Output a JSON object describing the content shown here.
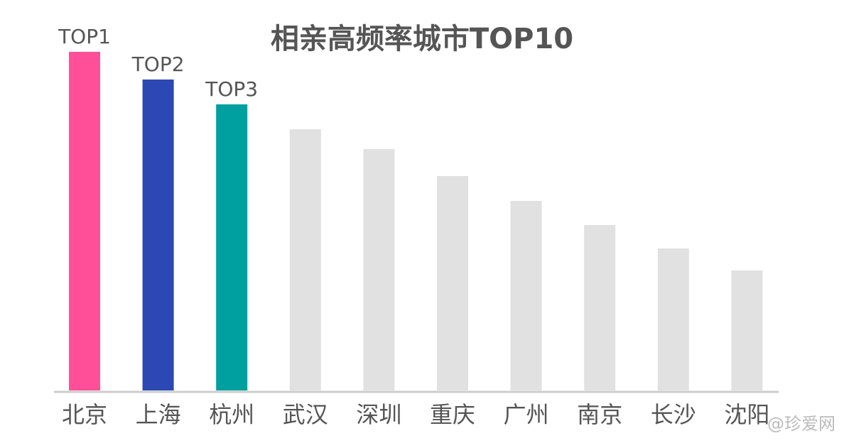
{
  "chart_data": {
    "type": "bar",
    "title": "相亲高频率城市TOP10",
    "categories": [
      "北京",
      "上海",
      "杭州",
      "武汉",
      "深圳",
      "重庆",
      "广州",
      "南京",
      "长沙",
      "沈阳"
    ],
    "values": [
      477,
      438,
      403,
      368,
      340,
      302,
      267,
      233,
      200,
      169
    ],
    "colors": [
      "#ff4f98",
      "#2b48b5",
      "#00a0a0",
      "#e1e1e1",
      "#e1e1e1",
      "#e1e1e1",
      "#e1e1e1",
      "#e1e1e1",
      "#e1e1e1",
      "#e1e1e1"
    ],
    "annotations": [
      "TOP1",
      "TOP2",
      "TOP3"
    ],
    "watermark": "@珍爱网"
  }
}
